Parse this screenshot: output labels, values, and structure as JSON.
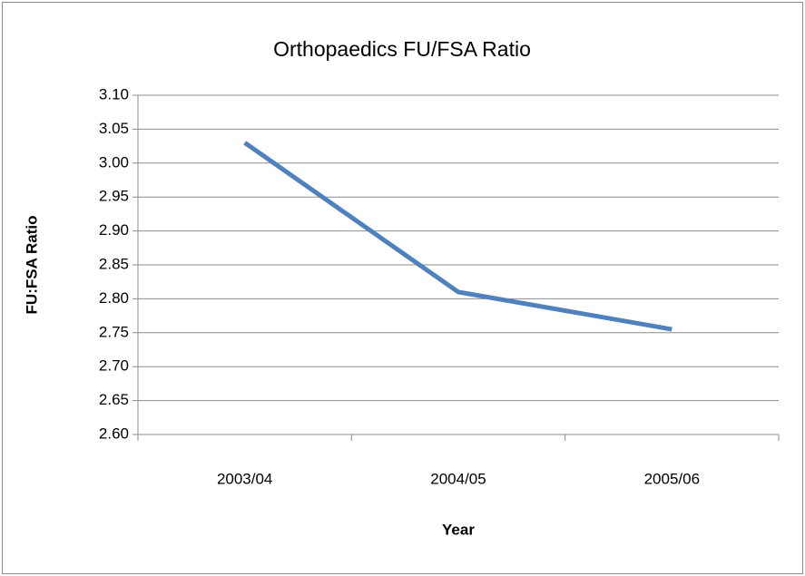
{
  "chart_data": {
    "type": "line",
    "title": "Orthopaedics FU/FSA Ratio",
    "x_label": "Year",
    "y_label": "FU:FSA Ratio",
    "categories": [
      "2003/04",
      "2004/05",
      "2005/06"
    ],
    "series": [
      {
        "name": "FU:FSA Ratio",
        "color": "#4f81bd",
        "values": [
          3.03,
          2.81,
          2.755
        ]
      }
    ],
    "ylim": [
      2.6,
      3.1
    ],
    "yticks": [
      {
        "value": 2.6,
        "label": "2.60"
      },
      {
        "value": 2.65,
        "label": "2.65"
      },
      {
        "value": 2.7,
        "label": "2.70"
      },
      {
        "value": 2.75,
        "label": "2.75"
      },
      {
        "value": 2.8,
        "label": "2.80"
      },
      {
        "value": 2.85,
        "label": "2.85"
      },
      {
        "value": 2.9,
        "label": "2.90"
      },
      {
        "value": 2.95,
        "label": "2.95"
      },
      {
        "value": 3,
        "label": "3.00"
      },
      {
        "value": 3.05,
        "label": "3.05"
      },
      {
        "value": 3.1,
        "label": "3.10"
      }
    ],
    "grid": true
  }
}
